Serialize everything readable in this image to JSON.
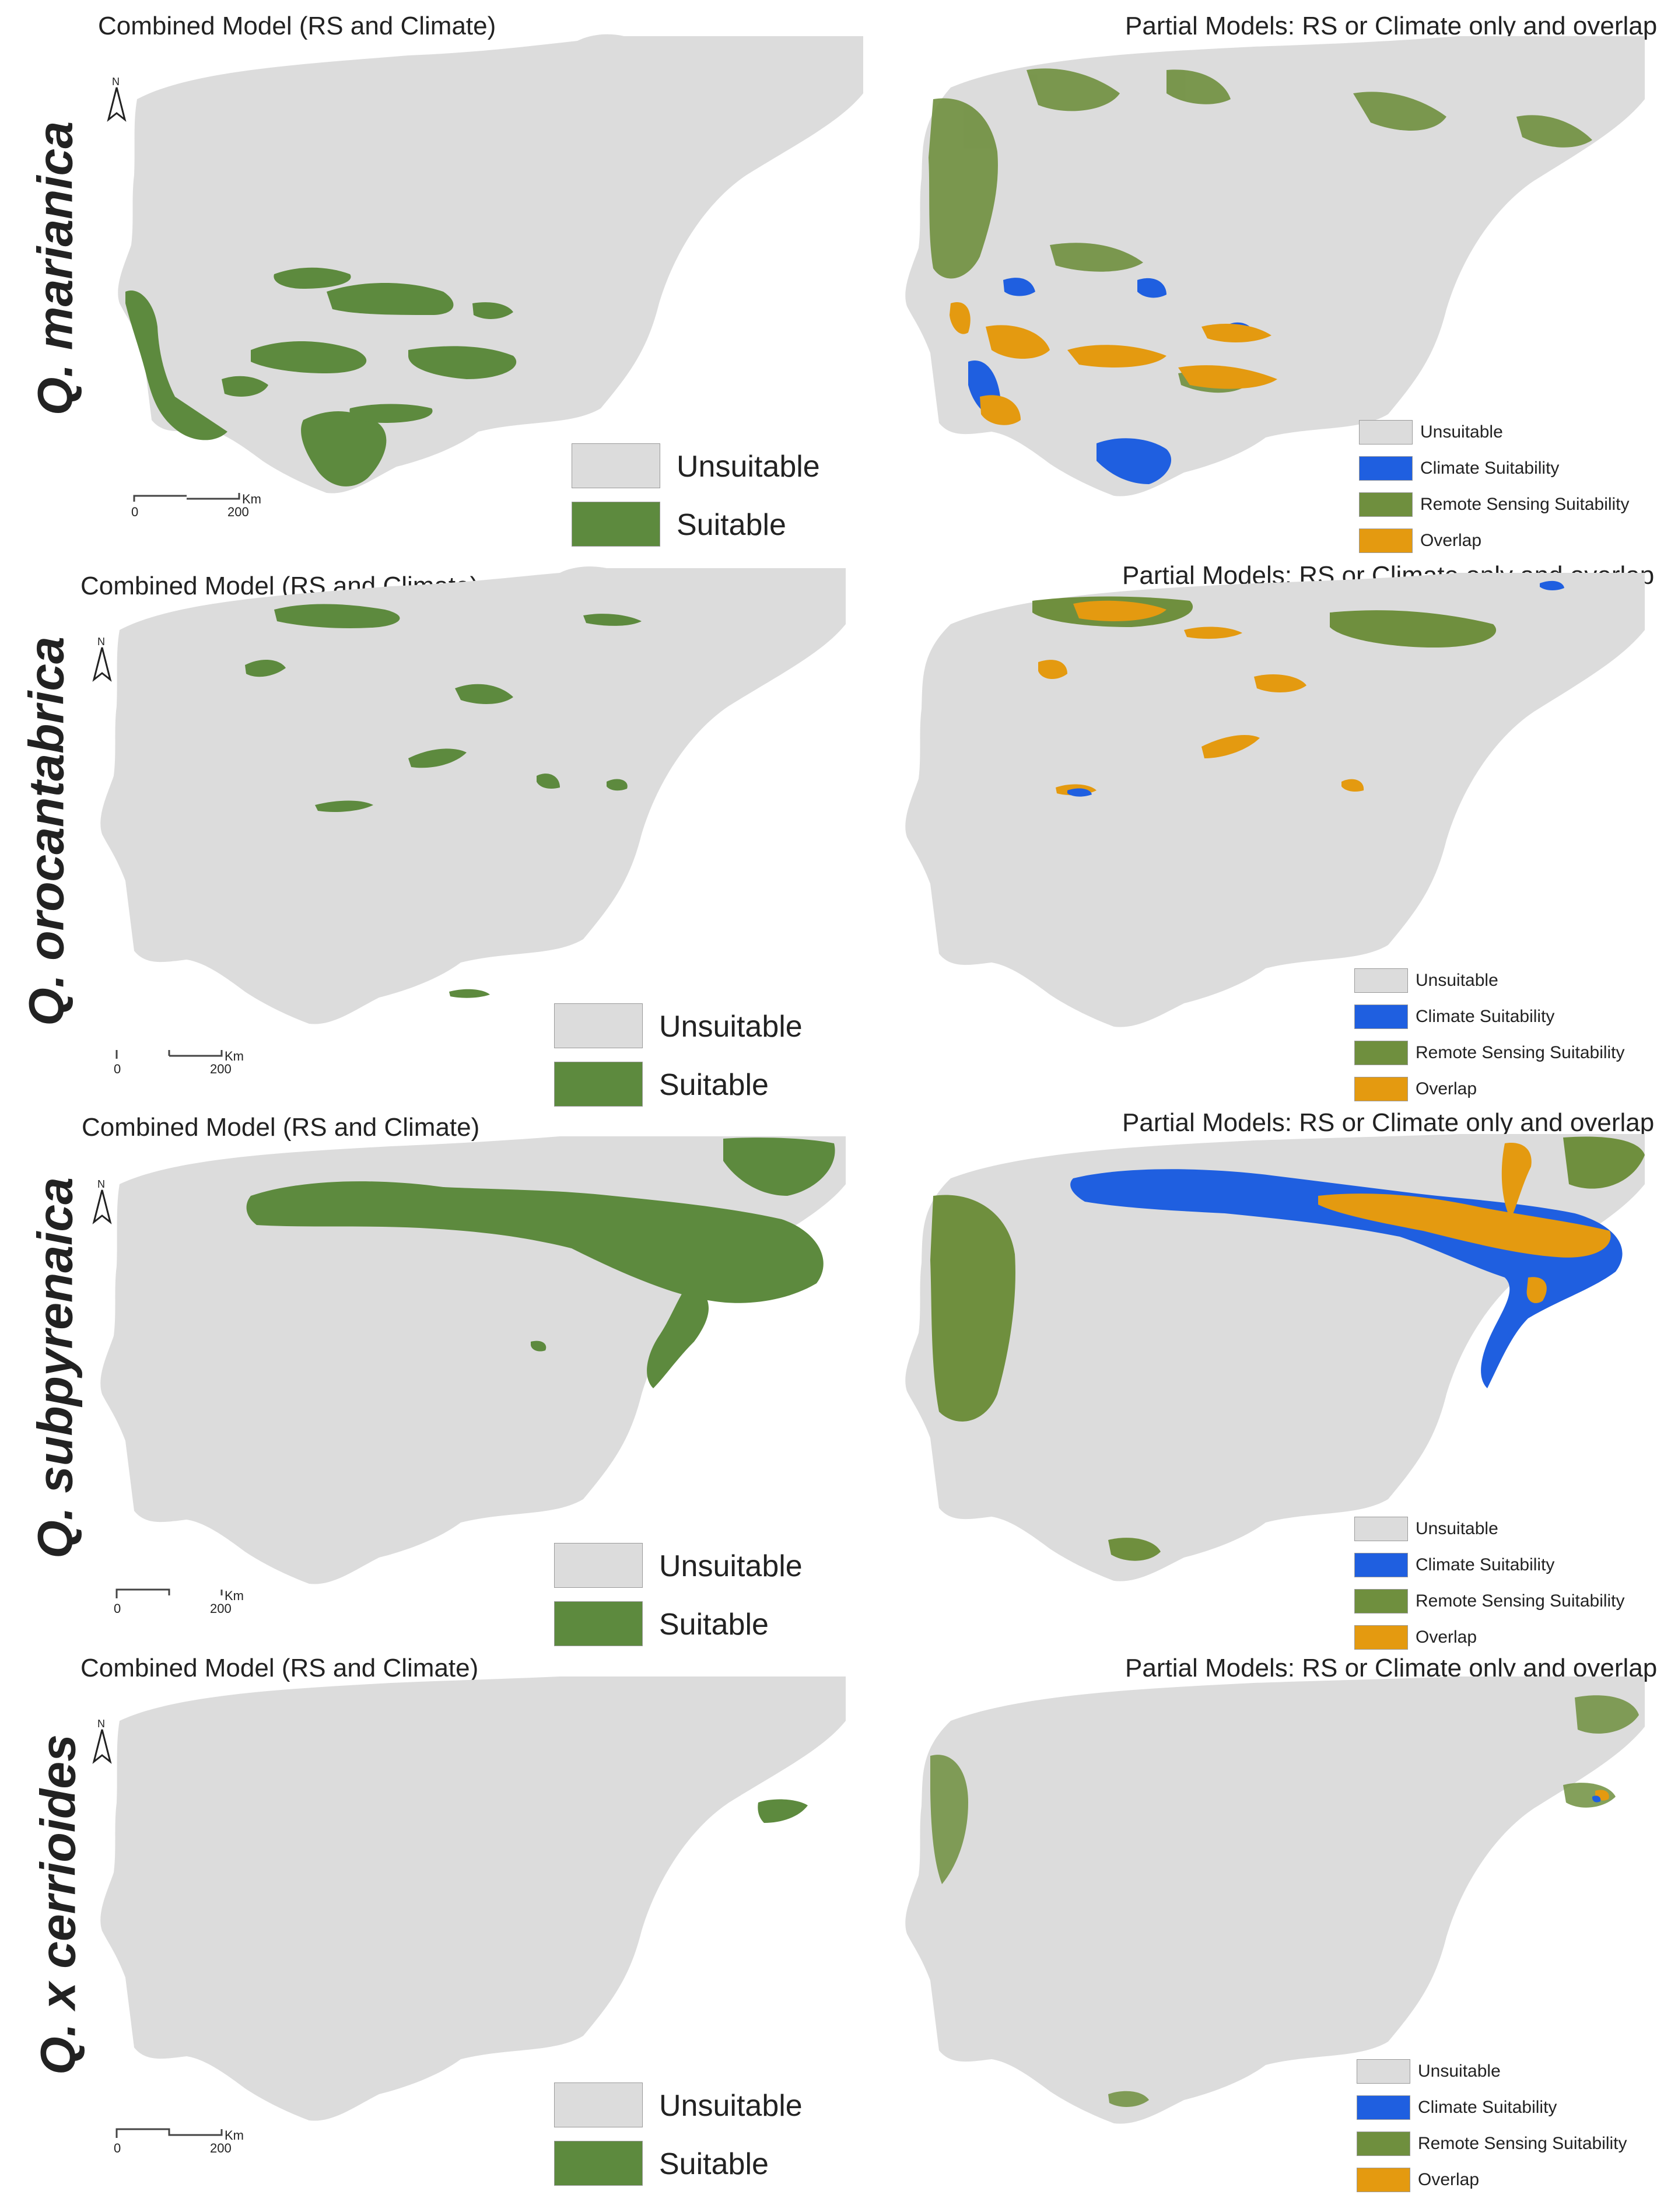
{
  "colors": {
    "unsuitable": "#dcdcdc",
    "suitable": "#5d8a3e",
    "climate": "#1f5fe0",
    "remote_sensing": "#6f8f3e",
    "overlap": "#e49a10"
  },
  "panels": [
    {
      "species": "Q. marianica",
      "combined_title": "Combined Model (RS and Climate)",
      "partial_title": "Partial Models: RS or Climate only and overlap"
    },
    {
      "species": "Q. orocantabrica",
      "combined_title": "Combined Model (RS and Climate)",
      "partial_title": "Partial Models: RS or Climate only and overlap"
    },
    {
      "species": "Q. subpyrenaica",
      "combined_title": "Combined Model (RS and Climate)",
      "partial_title": "Partial Models: RS or Climate only and overlap"
    },
    {
      "species": "Q. x cerrioides",
      "combined_title": "Combined Model (RS and Climate)",
      "partial_title": "Partial Models: RS or Climate only and overlap"
    }
  ],
  "combined_legend": {
    "unsuitable": "Unsuitable",
    "suitable": "Suitable"
  },
  "partial_legend": {
    "unsuitable": "Unsuitable",
    "climate": "Climate Suitability",
    "remote_sensing": "Remote Sensing Suitability",
    "overlap": "Overlap"
  },
  "scale_bar": {
    "zero": "0",
    "max": "200",
    "unit": "Km"
  },
  "north_arrow": "N"
}
